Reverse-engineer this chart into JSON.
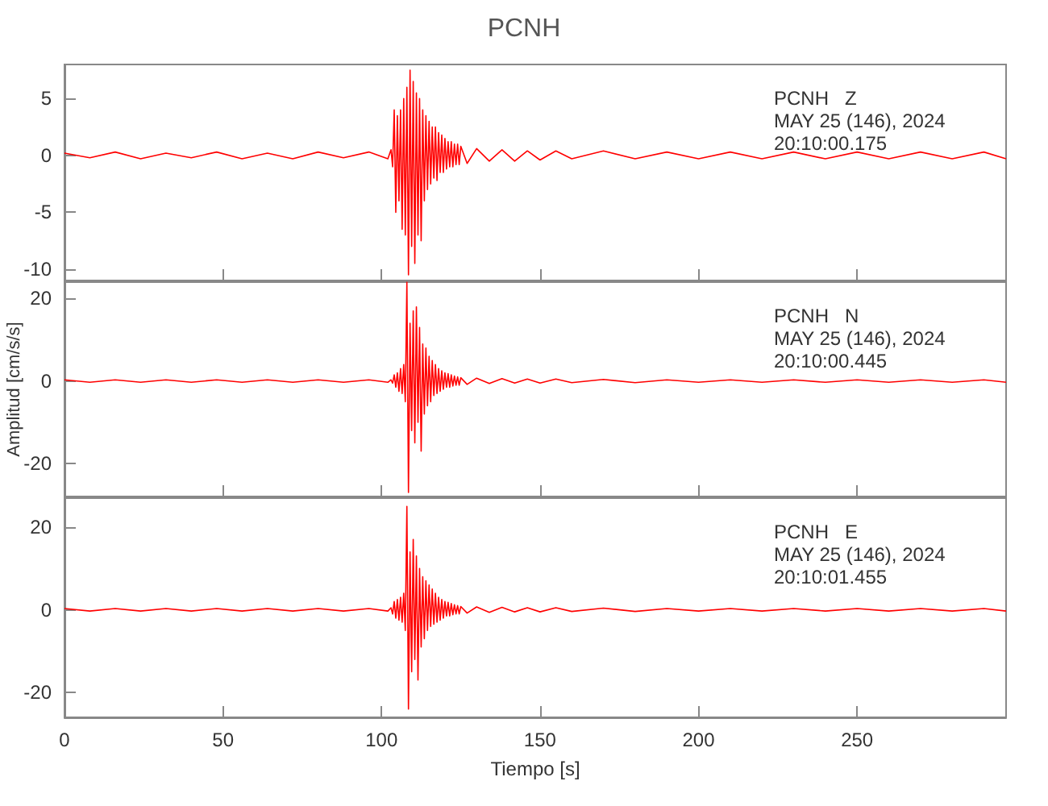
{
  "chart_data": [
    {
      "type": "line",
      "title": "PCNH",
      "annotations": [
        "PCNH   Z\nMAY 25 (146), 2024\n20:10:00.175"
      ],
      "xlim": [
        0,
        297
      ],
      "ylim": [
        -11,
        8
      ],
      "yticks": [
        -10,
        -5,
        0,
        5
      ],
      "xticks": [
        0,
        50,
        100,
        150,
        200,
        250
      ],
      "tick_labels": "y",
      "grid": false,
      "marker": "none",
      "line_style": "solid",
      "x": [
        0,
        8,
        16,
        24,
        32,
        40,
        48,
        56,
        64,
        72,
        80,
        88,
        96,
        102,
        103,
        103.5,
        104,
        104.5,
        105,
        105.5,
        106,
        106.5,
        107,
        107.5,
        108,
        108.5,
        109,
        109.5,
        110,
        110.5,
        111,
        111.5,
        112,
        112.5,
        113,
        113.5,
        114,
        114.5,
        115,
        115.5,
        116,
        116.5,
        117,
        117.5,
        118,
        118.5,
        119,
        119.5,
        120,
        120.5,
        121,
        121.5,
        122,
        122.5,
        123,
        123.5,
        124,
        124.5,
        125,
        127,
        130,
        134,
        138,
        142,
        146,
        150,
        155,
        160,
        170,
        180,
        190,
        200,
        210,
        220,
        230,
        240,
        250,
        260,
        270,
        280,
        290,
        297
      ],
      "series": [
        {
          "color": "#ff0000",
          "values": [
            0.2,
            -0.2,
            0.3,
            -0.3,
            0.2,
            -0.2,
            0.3,
            -0.3,
            0.2,
            -0.3,
            0.3,
            -0.2,
            0.3,
            -0.3,
            0.5,
            -1,
            4,
            -5,
            3.5,
            -4,
            4,
            -6.5,
            5,
            -7,
            6,
            -10.5,
            7.5,
            -8,
            6.5,
            -9.5,
            5.5,
            -7,
            5,
            -7.5,
            4,
            -4,
            3.5,
            -3,
            3,
            -2.5,
            2.5,
            -2,
            2.5,
            -2.2,
            2,
            -1.5,
            1.8,
            -1.5,
            1.5,
            -1.2,
            1.2,
            -1,
            1.2,
            -1,
            1,
            -0.8,
            1,
            -0.8,
            0.8,
            -0.7,
            0.6,
            -0.5,
            0.5,
            -0.5,
            0.4,
            -0.4,
            0.4,
            -0.3,
            0.4,
            -0.3,
            0.3,
            -0.3,
            0.3,
            -0.3,
            0.3,
            -0.3,
            0.3,
            -0.3,
            0.3,
            -0.3,
            0.3,
            -0.3
          ]
        }
      ]
    },
    {
      "type": "line",
      "ylabel": "Amplitud [cm/s/s]",
      "annotations": [
        "PCNH   N\nMAY 25 (146), 2024\n20:10:00.445"
      ],
      "xlim": [
        0,
        297
      ],
      "ylim": [
        -28,
        24
      ],
      "yticks": [
        -20,
        0,
        20
      ],
      "xticks": [
        0,
        50,
        100,
        150,
        200,
        250
      ],
      "tick_labels": "y",
      "grid": false,
      "marker": "none",
      "line_style": "solid",
      "x": [
        0,
        8,
        16,
        24,
        32,
        40,
        48,
        56,
        64,
        72,
        80,
        88,
        96,
        102,
        103,
        103.5,
        104,
        104.5,
        105,
        105.5,
        106,
        106.5,
        107,
        107.5,
        108,
        108.5,
        109,
        109.5,
        110,
        110.5,
        111,
        111.5,
        112,
        112.5,
        113,
        113.5,
        114,
        114.5,
        115,
        115.5,
        116,
        116.5,
        117,
        117.5,
        118,
        118.5,
        119,
        119.5,
        120,
        120.5,
        121,
        121.5,
        122,
        122.5,
        123,
        123.5,
        124,
        124.5,
        125,
        127,
        130,
        134,
        138,
        142,
        146,
        150,
        155,
        160,
        170,
        180,
        190,
        200,
        210,
        220,
        230,
        240,
        250,
        260,
        270,
        280,
        290,
        297
      ],
      "series": [
        {
          "color": "#ff0000",
          "values": [
            0.3,
            -0.3,
            0.3,
            -0.3,
            0.3,
            -0.3,
            0.3,
            -0.3,
            0.3,
            -0.3,
            0.3,
            -0.3,
            0.3,
            -0.3,
            0.3,
            -0.5,
            1.5,
            -1.5,
            2,
            -2.5,
            3,
            -3,
            4,
            -5,
            24,
            -27,
            14,
            -12,
            17,
            -15,
            18,
            -10,
            13,
            -17,
            9,
            -8,
            8,
            -6,
            6,
            -5,
            5,
            -3.5,
            4,
            -3,
            3,
            -2.5,
            2.5,
            -2,
            2,
            -1.5,
            1.8,
            -1.5,
            1.5,
            -1.2,
            1.2,
            -1,
            1,
            -1,
            0.8,
            -0.8,
            0.7,
            -0.6,
            0.6,
            -0.5,
            0.5,
            -0.5,
            0.5,
            -0.4,
            0.4,
            -0.4,
            0.3,
            -0.3,
            0.3,
            -0.3,
            0.3,
            -0.3,
            0.3,
            -0.3,
            0.3,
            -0.3,
            0.3,
            -0.3
          ]
        }
      ]
    },
    {
      "type": "line",
      "xlabel": "Tiempo [s]",
      "annotations": [
        "PCNH   E\nMAY 25 (146), 2024\n20:10:01.455"
      ],
      "xlim": [
        0,
        297
      ],
      "ylim": [
        -26,
        27
      ],
      "yticks": [
        -20,
        0,
        20
      ],
      "xticks": [
        0,
        50,
        100,
        150,
        200,
        250
      ],
      "grid": false,
      "marker": "none",
      "line_style": "solid",
      "x": [
        0,
        8,
        16,
        24,
        32,
        40,
        48,
        56,
        64,
        72,
        80,
        88,
        96,
        102,
        103,
        103.5,
        104,
        104.5,
        105,
        105.5,
        106,
        106.5,
        107,
        107.5,
        108,
        108.5,
        109,
        109.5,
        110,
        110.5,
        111,
        111.5,
        112,
        112.5,
        113,
        113.5,
        114,
        114.5,
        115,
        115.5,
        116,
        116.5,
        117,
        117.5,
        118,
        118.5,
        119,
        119.5,
        120,
        120.5,
        121,
        121.5,
        122,
        122.5,
        123,
        123.5,
        124,
        124.5,
        125,
        127,
        130,
        134,
        138,
        142,
        146,
        150,
        155,
        160,
        170,
        180,
        190,
        200,
        210,
        220,
        230,
        240,
        250,
        260,
        270,
        280,
        290,
        297
      ],
      "series": [
        {
          "color": "#ff0000",
          "values": [
            0.3,
            -0.3,
            0.3,
            -0.3,
            0.3,
            -0.3,
            0.3,
            -0.3,
            0.3,
            -0.3,
            0.3,
            -0.3,
            0.3,
            -0.3,
            0.5,
            -1,
            2,
            -2,
            2.5,
            -2.5,
            3,
            -3,
            4,
            -5,
            25,
            -24,
            14,
            -15,
            17,
            -12,
            13,
            -17,
            10,
            -9,
            8,
            -7,
            7,
            -5,
            6,
            -4,
            5,
            -3.5,
            4,
            -3,
            3,
            -2.5,
            2.5,
            -2,
            2,
            -1.5,
            1.8,
            -1.5,
            1.5,
            -1.2,
            1.2,
            -1,
            1,
            -1,
            0.8,
            -0.8,
            0.7,
            -0.6,
            0.6,
            -0.5,
            0.5,
            -0.5,
            0.5,
            -0.4,
            0.4,
            -0.4,
            0.3,
            -0.3,
            0.3,
            -0.3,
            0.3,
            -0.3,
            0.3,
            -0.3,
            0.3,
            -0.3,
            0.3,
            -0.3
          ]
        }
      ]
    }
  ]
}
